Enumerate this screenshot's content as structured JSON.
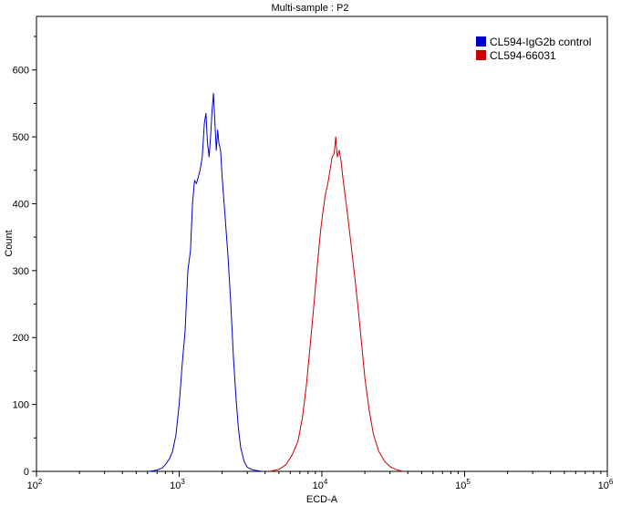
{
  "chart_data": {
    "type": "line",
    "title": "Multi-sample : P2",
    "xlabel": "ECD-A",
    "ylabel": "Count",
    "xscale": "log",
    "xlim": [
      100,
      1000000
    ],
    "ylim": [
      0,
      680
    ],
    "x_ticks": [
      {
        "value": 100,
        "base": "10",
        "exp": "2"
      },
      {
        "value": 1000,
        "base": "10",
        "exp": "3"
      },
      {
        "value": 10000,
        "base": "10",
        "exp": "4"
      },
      {
        "value": 100000,
        "base": "10",
        "exp": "5"
      },
      {
        "value": 1000000,
        "base": "10",
        "exp": "6"
      }
    ],
    "y_ticks": [
      "0",
      "100",
      "200",
      "300",
      "400",
      "500",
      "600"
    ],
    "legend_position": "top-right",
    "series": [
      {
        "name": "CL594-IgG2b control",
        "color": "#0000cc",
        "points": [
          [
            620,
            0
          ],
          [
            700,
            2
          ],
          [
            760,
            5
          ],
          [
            800,
            10
          ],
          [
            850,
            18
          ],
          [
            900,
            30
          ],
          [
            950,
            55
          ],
          [
            1000,
            100
          ],
          [
            1050,
            160
          ],
          [
            1100,
            210
          ],
          [
            1150,
            300
          ],
          [
            1200,
            330
          ],
          [
            1240,
            400
          ],
          [
            1280,
            435
          ],
          [
            1320,
            430
          ],
          [
            1360,
            440
          ],
          [
            1400,
            450
          ],
          [
            1450,
            470
          ],
          [
            1500,
            520
          ],
          [
            1540,
            535
          ],
          [
            1580,
            490
          ],
          [
            1620,
            470
          ],
          [
            1660,
            500
          ],
          [
            1700,
            540
          ],
          [
            1740,
            565
          ],
          [
            1780,
            520
          ],
          [
            1820,
            480
          ],
          [
            1860,
            510
          ],
          [
            1900,
            490
          ],
          [
            1950,
            480
          ],
          [
            2000,
            440
          ],
          [
            2100,
            380
          ],
          [
            2200,
            320
          ],
          [
            2300,
            250
          ],
          [
            2400,
            170
          ],
          [
            2500,
            110
          ],
          [
            2600,
            65
          ],
          [
            2700,
            35
          ],
          [
            2850,
            15
          ],
          [
            3000,
            6
          ],
          [
            3300,
            2
          ],
          [
            3800,
            0
          ]
        ]
      },
      {
        "name": "CL594-66031",
        "color": "#cc0000",
        "points": [
          [
            4300,
            0
          ],
          [
            5000,
            3
          ],
          [
            5600,
            10
          ],
          [
            6200,
            25
          ],
          [
            6800,
            45
          ],
          [
            7300,
            80
          ],
          [
            7800,
            130
          ],
          [
            8300,
            190
          ],
          [
            8800,
            250
          ],
          [
            9300,
            310
          ],
          [
            9800,
            360
          ],
          [
            10200,
            390
          ],
          [
            10600,
            415
          ],
          [
            11000,
            430
          ],
          [
            11400,
            450
          ],
          [
            11800,
            470
          ],
          [
            12200,
            475
          ],
          [
            12500,
            500
          ],
          [
            12800,
            470
          ],
          [
            13200,
            480
          ],
          [
            13600,
            465
          ],
          [
            14000,
            440
          ],
          [
            14600,
            410
          ],
          [
            15200,
            380
          ],
          [
            16000,
            340
          ],
          [
            17000,
            290
          ],
          [
            18000,
            240
          ],
          [
            19000,
            190
          ],
          [
            20000,
            140
          ],
          [
            21500,
            90
          ],
          [
            23000,
            55
          ],
          [
            25000,
            30
          ],
          [
            27500,
            15
          ],
          [
            30000,
            7
          ],
          [
            33000,
            3
          ],
          [
            37000,
            0
          ]
        ]
      }
    ]
  }
}
